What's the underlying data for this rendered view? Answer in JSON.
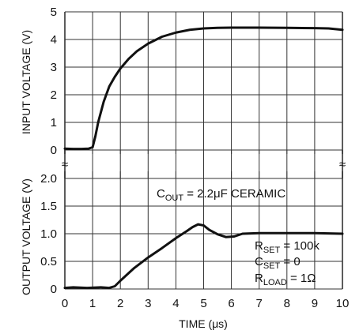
{
  "chart_data": {
    "type": "line",
    "xlabel": "TIME (μs)",
    "x_ticks": [
      "0",
      "1",
      "2",
      "3",
      "4",
      "5",
      "6",
      "7",
      "8",
      "9",
      "10"
    ],
    "xlim": [
      0,
      10
    ],
    "grid": true,
    "panels": [
      {
        "ylabel": "INPUT VOLTAGE (V)",
        "ylim": [
          0,
          5
        ],
        "y_ticks": [
          "0",
          "1",
          "2",
          "3",
          "4",
          "5"
        ],
        "series": [
          {
            "x": [
              0,
              0.3,
              0.6,
              0.85,
              1.0,
              1.1,
              1.2,
              1.4,
              1.6,
              1.8,
              2.0,
              2.3,
              2.6,
              3.0,
              3.5,
              4.0,
              4.5,
              5.0,
              5.5,
              6.0,
              7.0,
              8.0,
              9.0,
              9.5,
              10.0
            ],
            "y": [
              0.05,
              0.04,
              0.04,
              0.05,
              0.1,
              0.5,
              1.0,
              1.75,
              2.3,
              2.65,
              2.95,
              3.3,
              3.58,
              3.85,
              4.1,
              4.25,
              4.35,
              4.4,
              4.42,
              4.43,
              4.43,
              4.42,
              4.41,
              4.4,
              4.35
            ]
          }
        ]
      },
      {
        "ylabel": "OUTPUT VOLTAGE (V)",
        "ylim": [
          0,
          2.0
        ],
        "y_ticks": [
          "0",
          "0.5",
          "1.0",
          "1.5",
          "2.0"
        ],
        "series": [
          {
            "x": [
              0,
              0.3,
              0.8,
              1.3,
              1.6,
              1.8,
              2.0,
              2.5,
              3.0,
              3.5,
              4.0,
              4.4,
              4.6,
              4.8,
              5.0,
              5.2,
              5.5,
              5.8,
              6.1,
              6.4,
              7.0,
              8.0,
              9.0,
              10.0
            ],
            "y": [
              0.02,
              0.03,
              0.02,
              0.03,
              0.02,
              0.05,
              0.15,
              0.38,
              0.57,
              0.74,
              0.92,
              1.05,
              1.12,
              1.17,
              1.15,
              1.07,
              0.99,
              0.94,
              0.95,
              1.0,
              1.01,
              1.01,
              1.01,
              1.0
            ]
          }
        ],
        "annotations": [
          {
            "id": "cout",
            "main": "C",
            "sub": "OUT",
            "rest": " = 2.2μF CERAMIC"
          },
          {
            "id": "rset",
            "main": "R",
            "sub": "SET",
            "rest": " = 100k"
          },
          {
            "id": "cset",
            "main": "C",
            "sub": "SET",
            "rest": " = 0"
          },
          {
            "id": "rload",
            "main": "R",
            "sub": "LOAD",
            "rest": " = 1Ω"
          }
        ]
      }
    ],
    "break_marks": "≈"
  }
}
